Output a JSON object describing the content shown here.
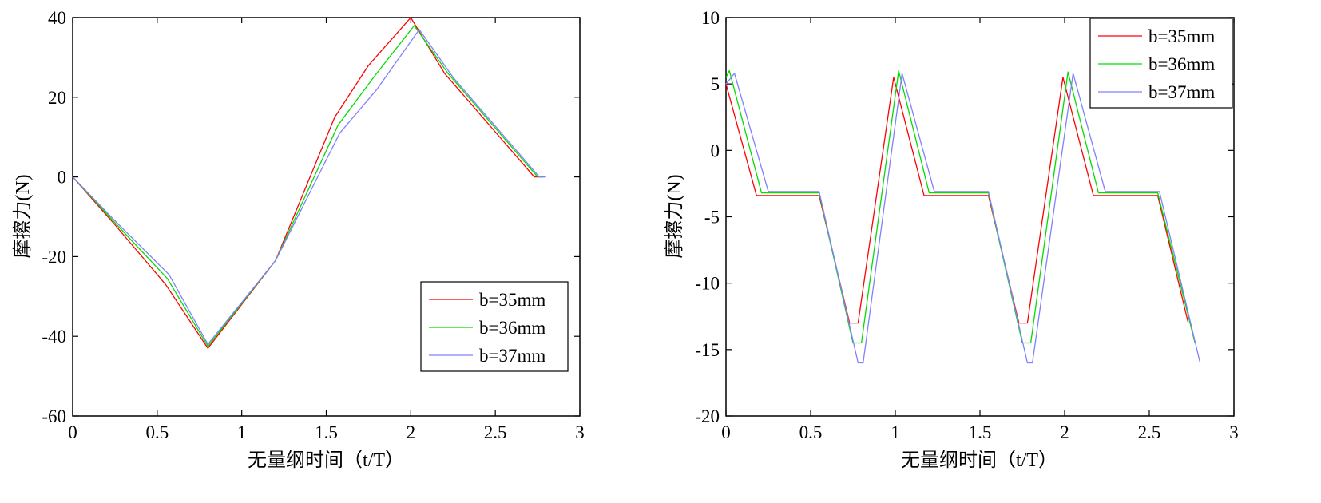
{
  "chart_data": [
    {
      "type": "line",
      "xlabel": "无量纲时间（t/T）",
      "ylabel": "摩擦力(N)",
      "xlim": [
        0,
        3
      ],
      "ylim": [
        -60,
        40
      ],
      "xticks": [
        0,
        0.5,
        1,
        1.5,
        2,
        2.5,
        3
      ],
      "xtick_labels": [
        "0",
        "0.5",
        "1",
        "1.5",
        "2",
        "2.5",
        "3"
      ],
      "yticks": [
        -60,
        -40,
        -20,
        0,
        20,
        40
      ],
      "ytick_labels": [
        "-60",
        "-40",
        "-20",
        "0",
        "20",
        "40"
      ],
      "grid": false,
      "legend_position": "lower-right",
      "series": [
        {
          "name": "b=35mm",
          "color": "#ff0000",
          "x": [
            0,
            0.25,
            0.55,
            0.8,
            1.2,
            1.55,
            1.75,
            2.0,
            2.2,
            2.73,
            2.78
          ],
          "y": [
            0,
            -12,
            -27,
            -43,
            -21,
            15,
            28,
            40,
            26,
            0,
            0
          ]
        },
        {
          "name": "b=36mm",
          "color": "#00dd00",
          "x": [
            0,
            0.25,
            0.56,
            0.8,
            1.2,
            1.57,
            1.78,
            2.02,
            2.22,
            2.75,
            2.79
          ],
          "y": [
            0,
            -11.5,
            -25.5,
            -42.5,
            -21,
            13,
            25,
            38,
            26,
            0,
            0
          ]
        },
        {
          "name": "b=37mm",
          "color": "#8080ff",
          "x": [
            0,
            0.25,
            0.57,
            0.8,
            1.2,
            1.58,
            1.8,
            2.05,
            2.25,
            2.76,
            2.8
          ],
          "y": [
            0,
            -11,
            -24.5,
            -42,
            -21,
            11,
            22,
            37,
            25,
            0,
            0
          ]
        }
      ]
    },
    {
      "type": "line",
      "xlabel": "无量纲时间（t/T）",
      "ylabel": "摩擦力(N)",
      "xlim": [
        0,
        3
      ],
      "ylim": [
        -20,
        10
      ],
      "xticks": [
        0,
        0.5,
        1,
        1.5,
        2,
        2.5,
        3
      ],
      "xtick_labels": [
        "0",
        "0.5",
        "1",
        "1.5",
        "2",
        "2.5",
        "3"
      ],
      "yticks": [
        -20,
        -15,
        -10,
        -5,
        0,
        5,
        10
      ],
      "ytick_labels": [
        "-20",
        "-15",
        "-10",
        "-5",
        "0",
        "5",
        "10"
      ],
      "grid": false,
      "legend_position": "top-right",
      "series": [
        {
          "name": "b=35mm",
          "color": "#ff0000",
          "x": [
            0,
            0.18,
            0.55,
            0.73,
            0.78,
            0.99,
            1.17,
            1.55,
            1.73,
            1.78,
            1.99,
            2.17,
            2.55,
            2.73
          ],
          "y": [
            5.0,
            -3.4,
            -3.4,
            -13,
            -13,
            5.5,
            -3.4,
            -3.4,
            -13,
            -13,
            5.5,
            -3.4,
            -3.4,
            -13
          ]
        },
        {
          "name": "b=36mm",
          "color": "#00dd00",
          "x": [
            0,
            0.02,
            0.21,
            0.55,
            0.75,
            0.8,
            1.02,
            1.2,
            1.55,
            1.75,
            1.8,
            2.02,
            2.2,
            2.55,
            2.77
          ],
          "y": [
            5.5,
            6.0,
            -3.2,
            -3.2,
            -14.5,
            -14.5,
            6.0,
            -3.2,
            -3.2,
            -14.5,
            -14.5,
            5.9,
            -3.2,
            -3.2,
            -14.5
          ]
        },
        {
          "name": "b=37mm",
          "color": "#8080ff",
          "x": [
            0,
            0.05,
            0.25,
            0.55,
            0.78,
            0.81,
            1.04,
            1.23,
            1.55,
            1.78,
            1.81,
            2.05,
            2.24,
            2.56,
            2.8
          ],
          "y": [
            5.0,
            5.8,
            -3.1,
            -3.1,
            -16,
            -16,
            5.8,
            -3.1,
            -3.1,
            -16,
            -16,
            5.8,
            -3.1,
            -3.1,
            -16
          ]
        }
      ]
    }
  ]
}
